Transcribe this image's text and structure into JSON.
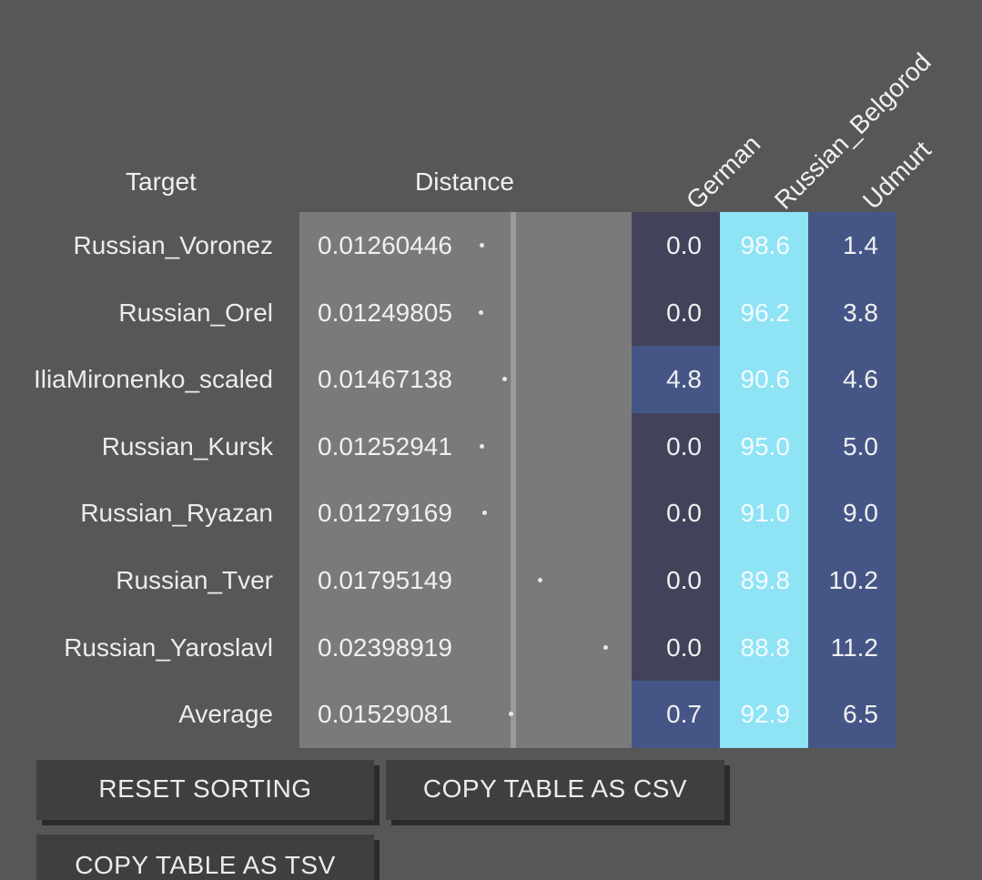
{
  "headers": {
    "target": "Target",
    "distance": "Distance",
    "columns": [
      "German",
      "Russian_Belgorod",
      "Udmurt"
    ]
  },
  "colors": {
    "background": "#575757",
    "distance_panel": "#7a7a7a",
    "cell_low": "#42425a",
    "cell_mid": "#455686",
    "cell_high": "#8ee3f5"
  },
  "rows": [
    {
      "target": "Russian_Voronez",
      "distance": "0.01260446",
      "values": [
        "0.0",
        "98.6",
        "1.4"
      ]
    },
    {
      "target": "Russian_Orel",
      "distance": "0.01249805",
      "values": [
        "0.0",
        "96.2",
        "3.8"
      ]
    },
    {
      "target": "IliaMironenko_scaled",
      "distance": "0.01467138",
      "values": [
        "4.8",
        "90.6",
        "4.6"
      ]
    },
    {
      "target": "Russian_Kursk",
      "distance": "0.01252941",
      "values": [
        "0.0",
        "95.0",
        "5.0"
      ]
    },
    {
      "target": "Russian_Ryazan",
      "distance": "0.01279169",
      "values": [
        "0.0",
        "91.0",
        "9.0"
      ]
    },
    {
      "target": "Russian_Tver",
      "distance": "0.01795149",
      "values": [
        "0.0",
        "89.8",
        "10.2"
      ]
    },
    {
      "target": "Russian_Yaroslavl",
      "distance": "0.02398919",
      "values": [
        "0.0",
        "88.8",
        "11.2"
      ]
    },
    {
      "target": "Average",
      "distance": "0.01529081",
      "values": [
        "0.7",
        "92.9",
        "6.5"
      ]
    }
  ],
  "buttons": {
    "reset_sorting": "RESET SORTING",
    "copy_csv": "COPY TABLE AS CSV",
    "copy_tsv": "COPY TABLE AS TSV"
  }
}
